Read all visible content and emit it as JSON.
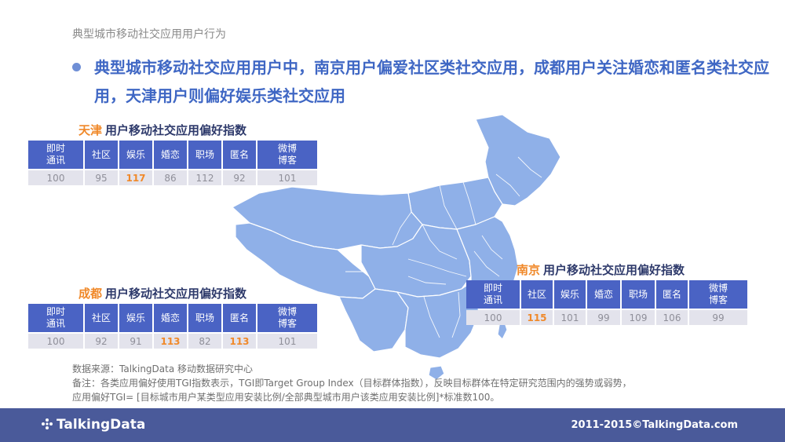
{
  "page_title": "典型城市移动社交应用用户行为",
  "headline": "典型城市移动社交应用用户中，南京用户偏爱社区类社交应用，成都用户关注婚恋和匿名类社交应用，天津用户则偏好娱乐类社交应用",
  "columns": [
    "即时\n通讯",
    "社区",
    "娱乐",
    "婚恋",
    "职场",
    "匿名",
    "微博\n博客"
  ],
  "tables": {
    "tianjin": {
      "city": "天津",
      "title": "用户移动社交应用偏好指数",
      "values": [
        "100",
        "95",
        "117",
        "86",
        "112",
        "92",
        "101"
      ],
      "highlight_index": 2
    },
    "chengdu": {
      "city": "成都",
      "title": "用户移动社交应用偏好指数",
      "values": [
        "100",
        "92",
        "91",
        "113",
        "82",
        "113",
        "101"
      ],
      "highlight_indices": [
        3,
        5
      ]
    },
    "nanjing": {
      "city": "南京",
      "title": "用户移动社交应用偏好指数",
      "values": [
        "100",
        "115",
        "101",
        "99",
        "109",
        "106",
        "99"
      ],
      "highlight_index": 1
    }
  },
  "notes": {
    "source": "数据来源：TalkingData 移动数据研究中心",
    "remark": "备注：各类应用偏好使用TGI指数表示，TGI即Target Group Index（目标群体指数），反映目标群体在特定研究范围内的强势或弱势，",
    "formula": "应用偏好TGI= [目标城市用户某类型应用安装比例/全部典型城市用户该类应用安装比例]*标准数100。"
  },
  "footer": {
    "logo": "TalkingData",
    "copyright": "2011-2015©TalkingData.com"
  },
  "colors": {
    "map_fill": "#8fb0e8",
    "header_blue": "#4a63c4",
    "highlight_orange": "#f0892a",
    "footer_bg": "#4a5a9a"
  }
}
